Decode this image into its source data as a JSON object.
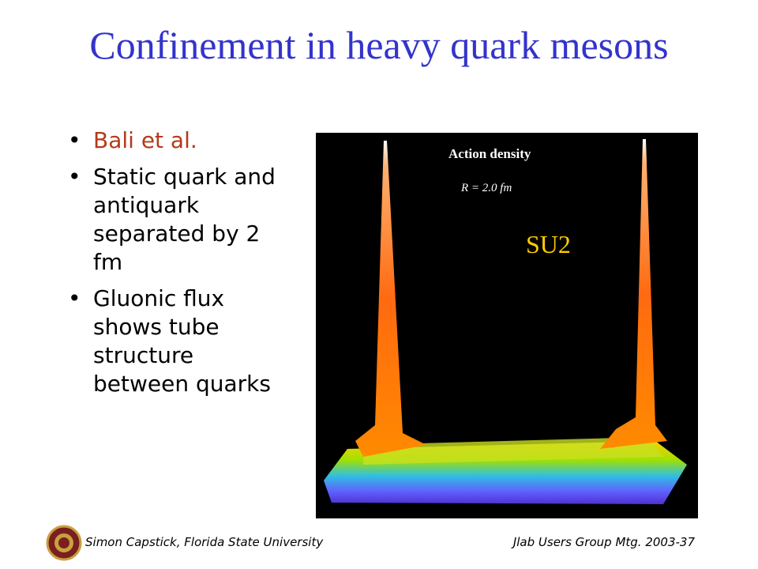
{
  "title": "Confinement in heavy quark mesons",
  "bullets": [
    "Bali et al.",
    "Static quark and antiquark separated by 2 fm",
    "Gluonic flux shows tube structure between quarks"
  ],
  "figure": {
    "heading": "Action density",
    "subheading": "R = 2.0 fm",
    "label": "SU2"
  },
  "footer": {
    "left": "Simon Capstick, Florida State University",
    "right": "Jlab Users Group Mtg. 2003-37"
  }
}
